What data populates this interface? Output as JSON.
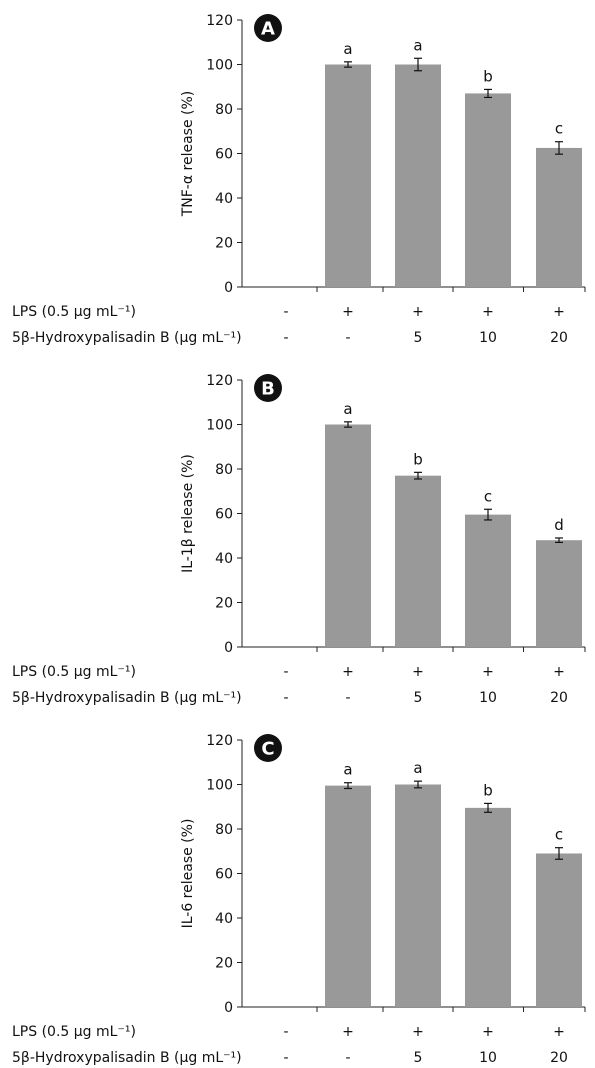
{
  "chart_data": [
    {
      "type": "bar",
      "panel_label": "A",
      "ylabel": "TNF-α release (%)",
      "ylim": [
        0,
        120
      ],
      "yticks": [
        0,
        20,
        40,
        60,
        80,
        100,
        120
      ],
      "values": [
        0,
        100,
        100,
        87,
        62.5
      ],
      "errors": [
        0,
        1.2,
        2.8,
        1.8,
        2.8
      ],
      "sig_letters": [
        "",
        "a",
        "a",
        "b",
        "c"
      ],
      "bar_color": "#999999",
      "factor_rows": [
        {
          "label": "LPS (0.5 μg mL⁻¹)",
          "values": [
            "-",
            "+",
            "+",
            "+",
            "+"
          ]
        },
        {
          "label": "5β-Hydroxypalisadin B (μg mL⁻¹)",
          "values": [
            "-",
            "-",
            "5",
            "10",
            "20"
          ]
        }
      ]
    },
    {
      "type": "bar",
      "panel_label": "B",
      "ylabel": "IL-1β release (%)",
      "ylim": [
        0,
        120
      ],
      "yticks": [
        0,
        20,
        40,
        60,
        80,
        100,
        120
      ],
      "values": [
        0,
        100,
        77,
        59.5,
        48
      ],
      "errors": [
        0,
        1.2,
        1.5,
        2.4,
        1.0
      ],
      "sig_letters": [
        "",
        "a",
        "b",
        "c",
        "d"
      ],
      "bar_color": "#999999",
      "factor_rows": [
        {
          "label": "LPS (0.5 μg mL⁻¹)",
          "values": [
            "-",
            "+",
            "+",
            "+",
            "+"
          ]
        },
        {
          "label": "5β-Hydroxypalisadin B (μg mL⁻¹)",
          "values": [
            "-",
            "-",
            "5",
            "10",
            "20"
          ]
        }
      ]
    },
    {
      "type": "bar",
      "panel_label": "C",
      "ylabel": "IL-6 release (%)",
      "ylim": [
        0,
        120
      ],
      "yticks": [
        0,
        20,
        40,
        60,
        80,
        100,
        120
      ],
      "values": [
        0,
        99.5,
        100,
        89.5,
        69
      ],
      "errors": [
        0,
        1.3,
        1.5,
        2.0,
        2.6
      ],
      "sig_letters": [
        "",
        "a",
        "a",
        "b",
        "c"
      ],
      "bar_color": "#999999",
      "factor_rows": [
        {
          "label": "LPS (0.5 μg mL⁻¹)",
          "values": [
            "-",
            "+",
            "+",
            "+",
            "+"
          ]
        },
        {
          "label": "5β-Hydroxypalisadin B (μg mL⁻¹)",
          "values": [
            "-",
            "-",
            "5",
            "10",
            "20"
          ]
        }
      ]
    }
  ]
}
